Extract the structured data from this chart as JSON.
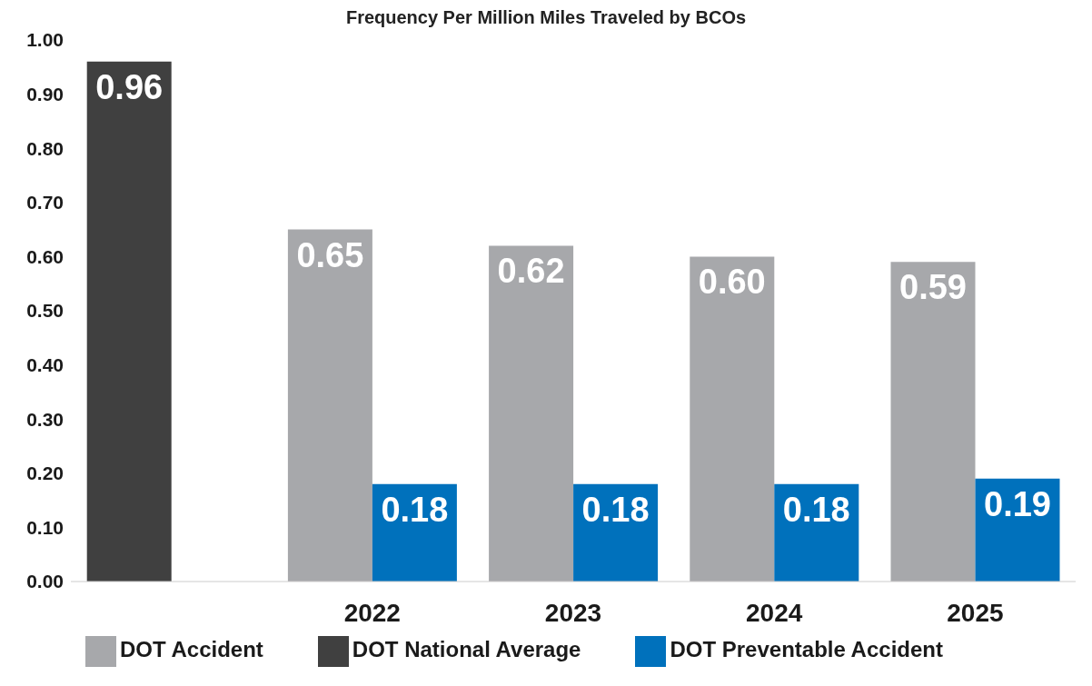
{
  "chart_data": {
    "type": "bar",
    "title": "Frequency Per Million Miles Traveled by BCOs",
    "categories": [
      null,
      "2022",
      "2023",
      "2024",
      "2025"
    ],
    "series": [
      {
        "name": "DOT National Average",
        "color": "#404040",
        "values": [
          0.96,
          null,
          null,
          null,
          null
        ],
        "value_labels": [
          "0.96",
          null,
          null,
          null,
          null
        ]
      },
      {
        "name": "DOT Accident",
        "color": "#a7a8ab",
        "values": [
          null,
          0.65,
          0.62,
          0.6,
          0.59
        ],
        "value_labels": [
          null,
          "0.65",
          "0.62",
          "0.60",
          "0.59"
        ]
      },
      {
        "name": "DOT Preventable Accident",
        "color": "#0071bc",
        "values": [
          null,
          0.18,
          0.18,
          0.18,
          0.19
        ],
        "value_labels": [
          null,
          "0.18",
          "0.18",
          "0.18",
          "0.19"
        ]
      }
    ],
    "ylim": [
      0,
      1
    ],
    "yticks": [
      {
        "value": 0,
        "label": "0.00"
      },
      {
        "value": 0.1,
        "label": "0.10"
      },
      {
        "value": 0.2,
        "label": "0.20"
      },
      {
        "value": 0.3,
        "label": "0.30"
      },
      {
        "value": 0.4,
        "label": "0.40"
      },
      {
        "value": 0.5,
        "label": "0.50"
      },
      {
        "value": 0.6,
        "label": "0.60"
      },
      {
        "value": 0.7,
        "label": "0.70"
      },
      {
        "value": 0.8,
        "label": "0.80"
      },
      {
        "value": 0.9,
        "label": "0.90"
      },
      {
        "value": 1,
        "label": "1.00"
      }
    ],
    "grid": false,
    "legend": "bottom"
  }
}
